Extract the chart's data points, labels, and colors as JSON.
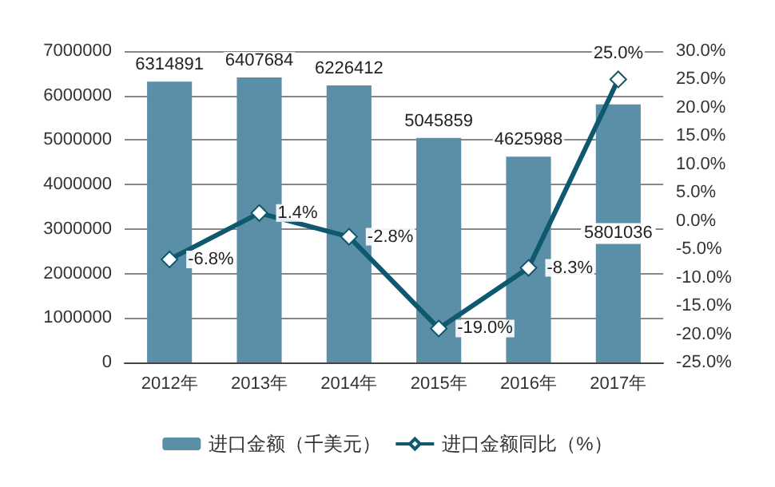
{
  "chart_data": {
    "type": "bar",
    "categories": [
      "2012年",
      "2013年",
      "2014年",
      "2015年",
      "2016年",
      "2017年"
    ],
    "series": [
      {
        "name": "进口金额（千美元）",
        "color": "#5b8fa8",
        "values": [
          6314891,
          6407684,
          6226412,
          5045859,
          4625988,
          5801036
        ],
        "value_labels": [
          "6314891",
          "6407684",
          "6226412",
          "5045859",
          "4625988",
          "5801036"
        ]
      },
      {
        "name": "进口金额同比（%）",
        "type": "line",
        "axis": "y2",
        "color": "#0e5870",
        "values": [
          -6.8,
          1.4,
          -2.8,
          -19.0,
          -8.3,
          25.0
        ],
        "value_labels": [
          "-6.8%",
          "1.4%",
          "-2.8%",
          "-19.0%",
          "-8.3%",
          "25.0%"
        ]
      }
    ],
    "ylim": [
      0,
      7000000
    ],
    "yticks": [
      0,
      1000000,
      2000000,
      3000000,
      4000000,
      5000000,
      6000000,
      7000000
    ],
    "y2lim": [
      -25,
      30
    ],
    "y2ticks": [
      {
        "value": -25,
        "label": "-25.0%"
      },
      {
        "value": -20,
        "label": "-20.0%"
      },
      {
        "value": -15,
        "label": "-15.0%"
      },
      {
        "value": -10,
        "label": "-10.0%"
      },
      {
        "value": -5,
        "label": "-5.0%"
      },
      {
        "value": 0,
        "label": "0.0%"
      },
      {
        "value": 5,
        "label": "5.0%"
      },
      {
        "value": 10,
        "label": "10.0%"
      },
      {
        "value": 15,
        "label": "15.0%"
      },
      {
        "value": 20,
        "label": "20.0%"
      },
      {
        "value": 25,
        "label": "25.0%"
      },
      {
        "value": 30,
        "label": "30.0%"
      }
    ],
    "grid": "y",
    "legend": "bottom",
    "marker": "diamond",
    "line_style": "solid"
  }
}
